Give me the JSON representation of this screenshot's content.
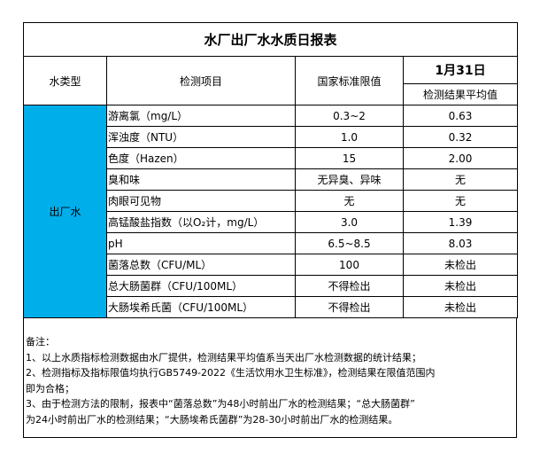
{
  "title": "水厂出厂水水质日报表",
  "headers": {
    "type": "水类型",
    "item": "检测项目",
    "limit": "国家标准限值",
    "date": "1月31日",
    "result": "检测结果平均值"
  },
  "water_type": "出厂水",
  "accent_color": "#00aeea",
  "rows": [
    {
      "item": "游离氯（mg/L）",
      "limit": "0.3~2",
      "result": "0.63"
    },
    {
      "item": "浑浊度（NTU）",
      "limit": "1.0",
      "result": "0.32"
    },
    {
      "item": "色度（Hazen）",
      "limit": "15",
      "result": "2.00"
    },
    {
      "item": "臭和味",
      "limit": "无异臭、异味",
      "result": "无"
    },
    {
      "item": "肉眼可见物",
      "limit": "无",
      "result": "无"
    },
    {
      "item": "高锰酸盐指数（以O₂计，mg/L）",
      "limit": "3.0",
      "result": "1.39"
    },
    {
      "item": "pH",
      "limit": "6.5~8.5",
      "result": "8.03"
    },
    {
      "item": "菌落总数（CFU/ML）",
      "limit": "100",
      "result": "未检出"
    },
    {
      "item": "总大肠菌群（CFU/100ML）",
      "limit": "不得检出",
      "result": "未检出"
    },
    {
      "item": "大肠埃希氏菌（CFU/100ML）",
      "limit": "不得检出",
      "result": "未检出"
    }
  ],
  "notes": [
    "备注：",
    "1、以上水质指标检测数据由水厂提供，检测结果平均值系当天出厂水检测数据的统计结果；",
    "2、检测指标及指标限值均执行GB5749-2022《生活饮用水卫生标准》，检测结果在限值范围内",
    "即为合格；",
    "3、由于检测方法的限制，报表中“菌落总数”为48小时前出厂水的检测结果；“总大肠菌群”",
    "为24小时前出厂水的检测结果；“大肠埃希氏菌群”为28-30小时前出厂水的检测结果。"
  ]
}
